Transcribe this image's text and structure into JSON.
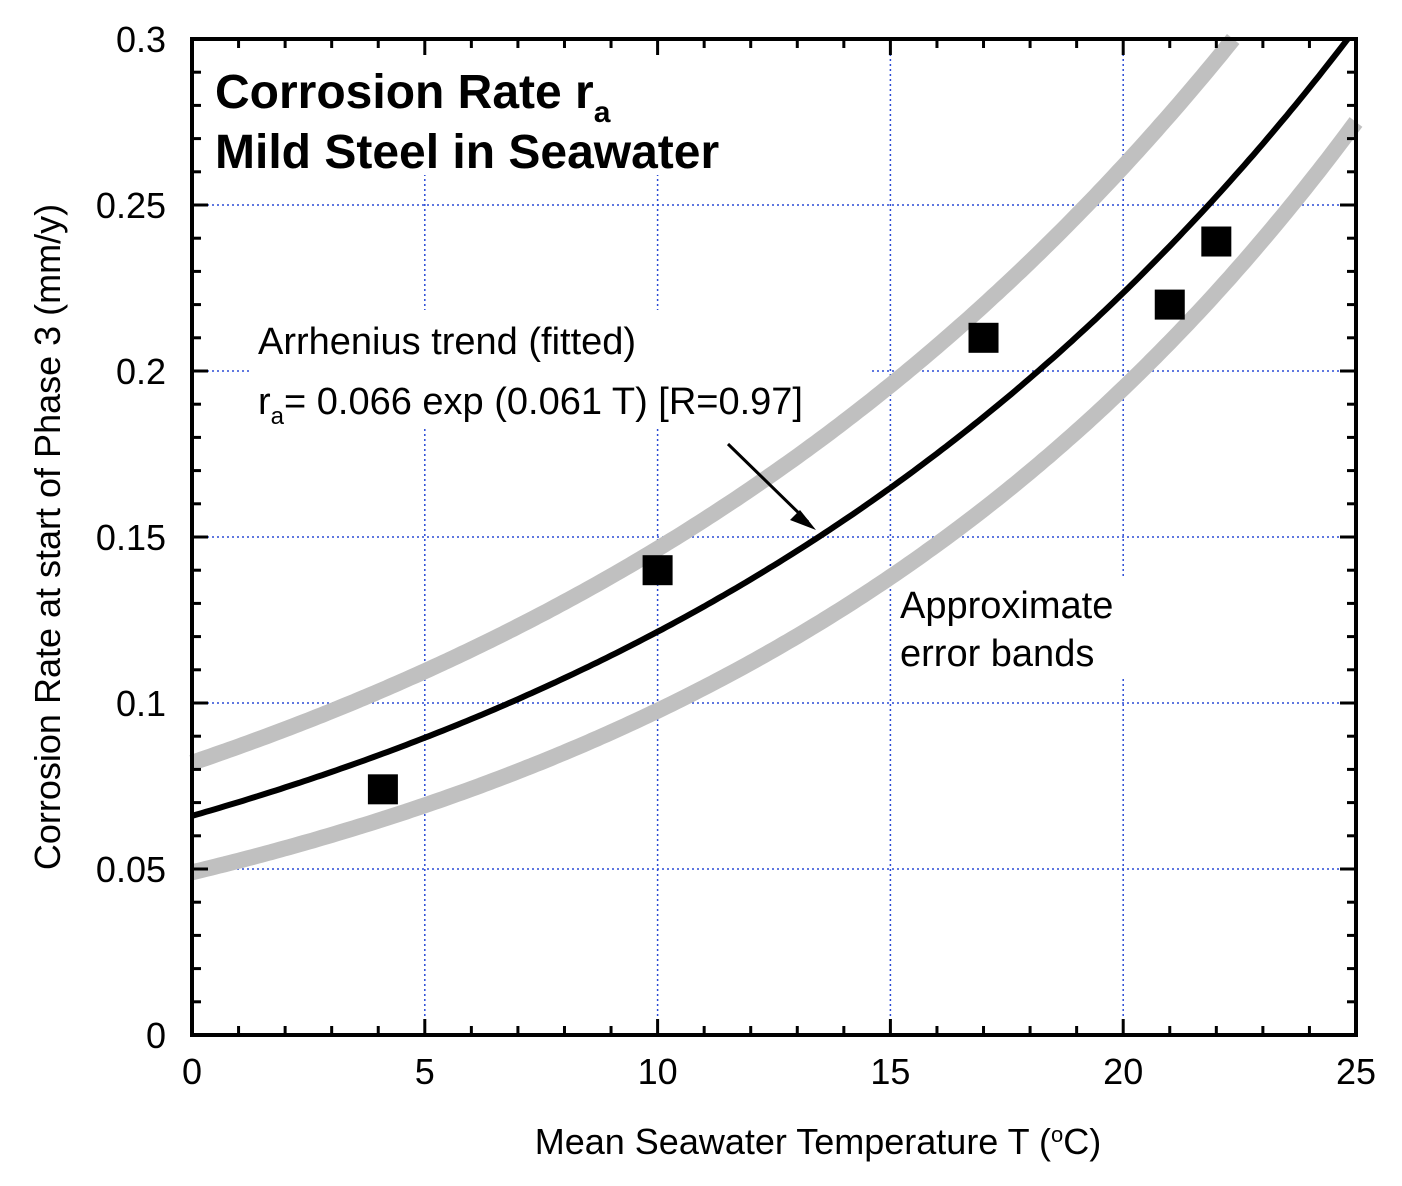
{
  "chart_data": {
    "type": "scatter",
    "title_line1": "Corrosion Rate r",
    "title_sub": "a",
    "title_line2": "Mild Steel in Seawater",
    "xlabel": "Mean Seawater Temperature T (",
    "xlabel_degree": "o",
    "xlabel_unit": "C)",
    "ylabel": "Corrosion Rate at start of Phase 3 (mm/y)",
    "xlim": [
      0,
      25
    ],
    "ylim": [
      0,
      0.3
    ],
    "xticks": [
      0,
      5,
      10,
      15,
      20,
      25
    ],
    "xtick_labels": [
      "0",
      "5",
      "10",
      "15",
      "20",
      "25"
    ],
    "yticks": [
      0,
      0.05,
      0.1,
      0.15,
      0.2,
      0.25,
      0.3
    ],
    "ytick_labels": [
      "0",
      "0.05",
      "0.1",
      "0.15",
      "0.2",
      "0.25",
      "0.3"
    ],
    "grid": true,
    "points": [
      {
        "x": 4.1,
        "y": 0.074
      },
      {
        "x": 10.0,
        "y": 0.14
      },
      {
        "x": 17.0,
        "y": 0.21
      },
      {
        "x": 21.0,
        "y": 0.22
      },
      {
        "x": 22.0,
        "y": 0.239
      }
    ],
    "fit": {
      "a": 0.066,
      "b": 0.061
    },
    "band_upper": {
      "a": 0.082,
      "b": 0.058
    },
    "band_lower": {
      "a": 0.049,
      "b": 0.069
    },
    "annotation_fit_line1": "Arrhenius trend (fitted)",
    "annotation_fit_r": "r",
    "annotation_fit_sub": "a",
    "annotation_fit_eq": "= 0.066 exp (0.061 T) [R=0.97]",
    "annotation_bands_line1": "Approximate",
    "annotation_bands_line2": "error bands",
    "colors": {
      "grid": "#2b4bd6",
      "band": "#c0c0c0",
      "fit": "#000000",
      "marker": "#000000"
    }
  }
}
